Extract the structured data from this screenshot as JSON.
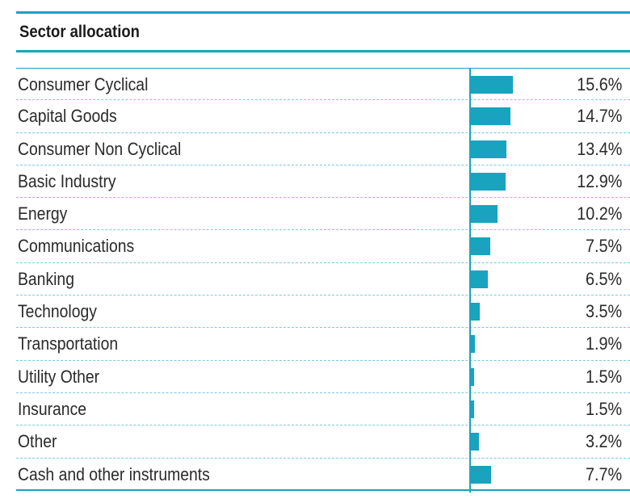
{
  "chart_data": {
    "type": "bar",
    "orientation": "horizontal",
    "title": "Sector allocation",
    "categories": [
      "Consumer Cyclical",
      "Capital Goods",
      "Consumer Non Cyclical",
      "Basic Industry",
      "Energy",
      "Communications",
      "Banking",
      "Technology",
      "Transportation",
      "Utility Other",
      "Insurance",
      "Other",
      "Cash and other instruments"
    ],
    "values": [
      15.6,
      14.7,
      13.4,
      12.9,
      10.2,
      7.5,
      6.5,
      3.5,
      1.9,
      1.5,
      1.5,
      3.2,
      7.7
    ],
    "labels": [
      "15.6%",
      "14.7%",
      "13.4%",
      "12.9%",
      "10.2%",
      "7.5%",
      "6.5%",
      "3.5%",
      "1.9%",
      "1.5%",
      "1.5%",
      "3.2%",
      "7.7%"
    ],
    "unit": "%",
    "xlim": [
      0,
      16
    ],
    "color": "#1aa3be"
  }
}
